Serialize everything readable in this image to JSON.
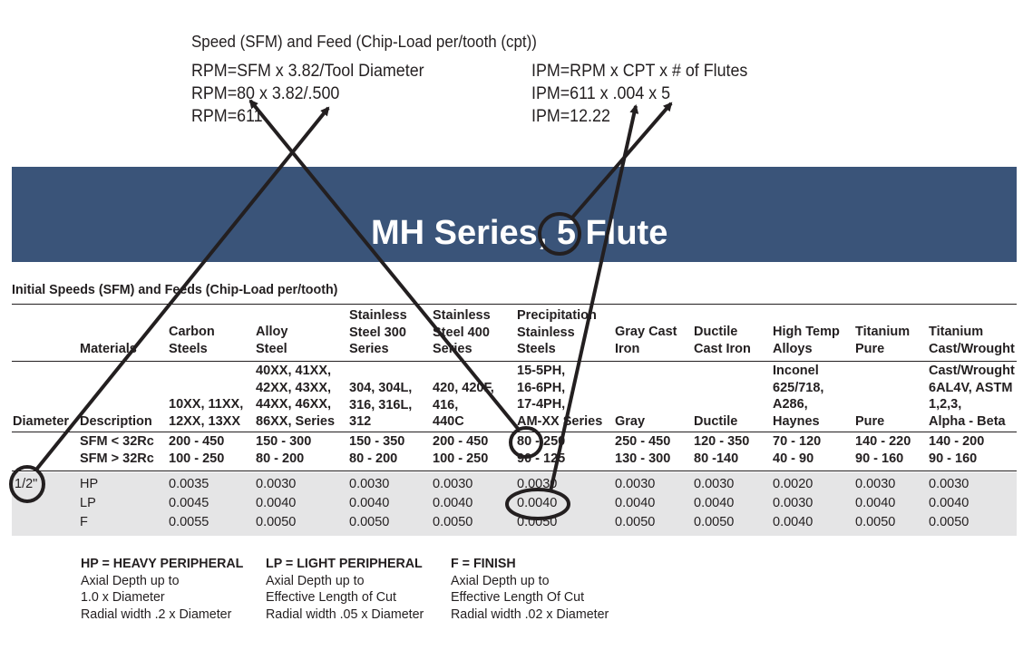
{
  "formulas": {
    "heading": "Speed (SFM) and Feed (Chip-Load per/tooth (cpt))",
    "rpm_lines": [
      "RPM=SFM x 3.82/Tool Diameter",
      "RPM=80 x 3.82/.500",
      "RPM=611"
    ],
    "ipm_lines": [
      "IPM=RPM x CPT x # of Flutes",
      "IPM=611 x .004 x 5",
      "IPM=12.22"
    ]
  },
  "banner": {
    "title": "MH Series, 5 Flute",
    "color": "#3a5479"
  },
  "section_title": "Initial Speeds (SFM) and Feeds (Chip-Load per/tooth)",
  "table": {
    "corner": {
      "materials": "Materials",
      "diameter": "Diameter",
      "description": "Description"
    },
    "columns": [
      {
        "header": [
          "Carbon",
          "Steels"
        ],
        "description": [
          "10XX, 11XX,",
          "12XX, 13XX"
        ],
        "sfm_low": "200 - 450",
        "sfm_high": "100 - 250",
        "hp": "0.0035",
        "lp": "0.0045",
        "f": "0.0055"
      },
      {
        "header": [
          "Alloy",
          "Steel"
        ],
        "description": [
          "40XX, 41XX,",
          "42XX, 43XX,",
          "44XX, 46XX,",
          "86XX, Series"
        ],
        "sfm_low": "150 - 300",
        "sfm_high": "80 - 200",
        "hp": "0.0030",
        "lp": "0.0040",
        "f": "0.0050"
      },
      {
        "header": [
          "Stainless",
          "Steel 300",
          "Series"
        ],
        "description": [
          "304, 304L,",
          "316, 316L,",
          "312"
        ],
        "sfm_low": "150 - 350",
        "sfm_high": "80 - 200",
        "hp": "0.0030",
        "lp": "0.0040",
        "f": "0.0050"
      },
      {
        "header": [
          "Stainless",
          "Steel 400",
          "Series"
        ],
        "description": [
          "420, 420F,",
          "416,",
          "440C"
        ],
        "sfm_low": "200 - 450",
        "sfm_high": "100 - 250",
        "hp": "0.0030",
        "lp": "0.0040",
        "f": "0.0050"
      },
      {
        "header": [
          "Precipitation",
          "Stainless",
          "Steels"
        ],
        "description": [
          "15-5PH,",
          "16-6PH,",
          "17-4PH,",
          "AM-XX Series"
        ],
        "sfm_low": "80 - 250",
        "sfm_high": "90 - 125",
        "hp": "0.0030",
        "lp": "0.0040",
        "f": "0.0050"
      },
      {
        "header": [
          "Gray Cast",
          "Iron"
        ],
        "description": [
          "Gray"
        ],
        "sfm_low": "250 - 450",
        "sfm_high": "130 - 300",
        "hp": "0.0030",
        "lp": "0.0040",
        "f": "0.0050"
      },
      {
        "header": [
          "Ductile",
          "Cast Iron"
        ],
        "description": [
          "Ductile"
        ],
        "sfm_low": "120 - 350",
        "sfm_high": "80 -140",
        "hp": "0.0030",
        "lp": "0.0040",
        "f": "0.0050"
      },
      {
        "header": [
          "High Temp",
          "Alloys"
        ],
        "description": [
          "Inconel",
          "625/718,",
          "A286,",
          "Haynes"
        ],
        "sfm_low": "70 - 120",
        "sfm_high": "40 - 90",
        "hp": "0.0020",
        "lp": "0.0030",
        "f": "0.0040"
      },
      {
        "header": [
          "Titanium",
          "Pure"
        ],
        "description": [
          "Pure"
        ],
        "sfm_low": "140 - 220",
        "sfm_high": "90 - 160",
        "hp": "0.0030",
        "lp": "0.0040",
        "f": "0.0050"
      },
      {
        "header": [
          "Titanium",
          "Cast/Wrought"
        ],
        "description": [
          "Cast/Wrought",
          "6AL4V, ASTM",
          "1,2,3,",
          "Alpha - Beta"
        ],
        "sfm_low": "140 - 200",
        "sfm_high": "90 - 160",
        "hp": "0.0030",
        "lp": "0.0040",
        "f": "0.0050"
      }
    ],
    "sfm_labels": [
      "SFM < 32Rc",
      "SFM > 32Rc"
    ],
    "diameter": "1/2\"",
    "operations": [
      "HP",
      "LP",
      "F"
    ]
  },
  "legend": [
    {
      "title": "HP = HEAVY PERIPHERAL",
      "lines": [
        "Axial Depth up to",
        "1.0 x Diameter",
        "Radial width .2 x Diameter"
      ]
    },
    {
      "title": "LP = LIGHT PERIPHERAL",
      "lines": [
        "Axial Depth up to",
        "Effective Length of Cut",
        "Radial width .05 x Diameter"
      ]
    },
    {
      "title": "F = FINISH",
      "lines": [
        "Axial Depth up to",
        "Effective Length Of Cut",
        "Radial width .02 x Diameter"
      ]
    }
  ]
}
